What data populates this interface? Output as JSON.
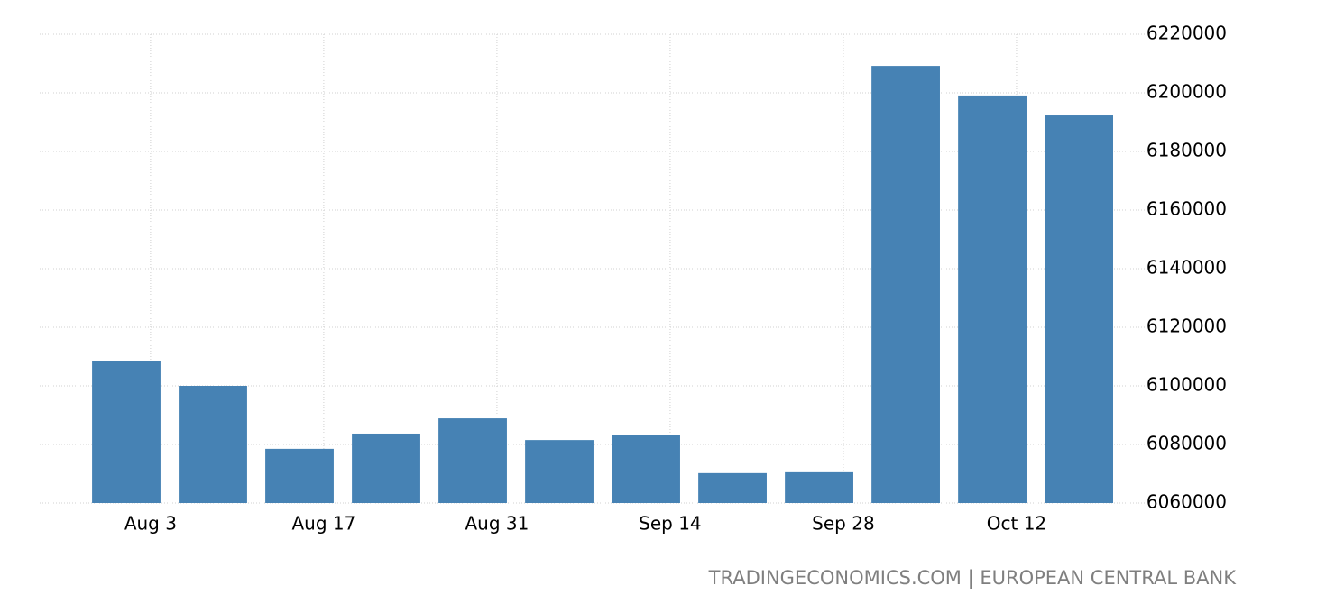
{
  "chart_data": {
    "type": "bar",
    "x": [
      0,
      1,
      2,
      3,
      4,
      5,
      6,
      7,
      8,
      9,
      10,
      11
    ],
    "values": [
      6108600,
      6100000,
      6078500,
      6083700,
      6088900,
      6081500,
      6083100,
      6070200,
      6070500,
      6209200,
      6199100,
      6192300
    ],
    "color": "#4682b4",
    "xlim": [
      -1,
      11.77
    ],
    "xticks": [
      {
        "value": 0.28,
        "label": "Aug 3"
      },
      {
        "value": 2.28,
        "label": "Aug 17"
      },
      {
        "value": 4.28,
        "label": "Aug 31"
      },
      {
        "value": 6.28,
        "label": "Sep 14"
      },
      {
        "value": 8.28,
        "label": "Sep 28"
      },
      {
        "value": 10.28,
        "label": "Oct 12"
      }
    ],
    "ylim": [
      6060000,
      6220000
    ],
    "yticks": [
      6060000,
      6080000,
      6100000,
      6120000,
      6140000,
      6160000,
      6180000,
      6200000,
      6220000
    ],
    "grid": true,
    "source": "TRADINGECONOMICS.COM | EUROPEAN CENTRAL BANK"
  }
}
